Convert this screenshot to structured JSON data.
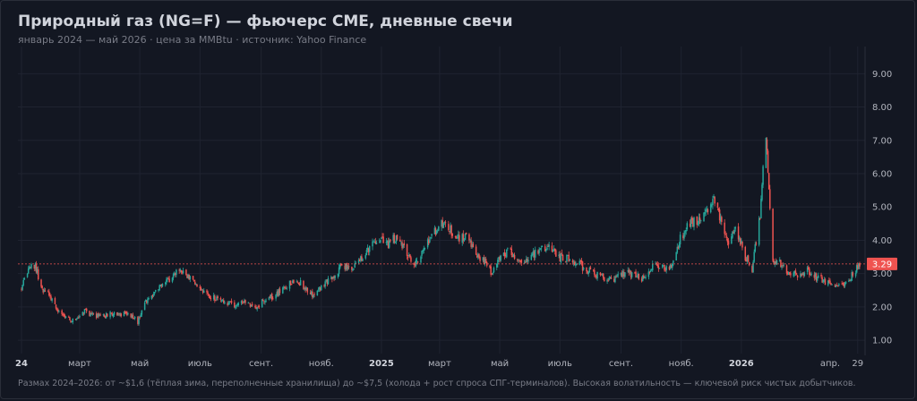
{
  "header": {
    "title": "Природный газ (NG=F) — фьючерс CME, дневные свечи",
    "subtitle": "январь 2024 — май 2026 · цена за MMBtu · источник: Yahoo Finance"
  },
  "footnote": "Размах 2024–2026: от ~$1,6 (тёплая зима, переполненные хранилища) до ~$7,5 (холода + рост спроса СПГ-терминалов). Высокая волатильность — ключевой риск чистых добытчиков.",
  "colors": {
    "background": "#131722",
    "grid": "#1f2330",
    "up": "#26a69a",
    "down": "#ef5350",
    "last_price": "#ef5350"
  },
  "chart_data": {
    "type": "candlestick",
    "title": "Природный газ (NG=F) — фьючерс CME, дневные свечи",
    "xlabel": "",
    "ylabel": "",
    "ylim": [
      0.6,
      9.6
    ],
    "y_ticks": [
      "1.00",
      "2.00",
      "3.00",
      "4.00",
      "5.00",
      "6.00",
      "7.00",
      "8.00",
      "9.00"
    ],
    "x_range": [
      "2024-01-02",
      "2026-05-01"
    ],
    "x_ticks": [
      {
        "date": "2024-01-01",
        "label": "24",
        "bold": true
      },
      {
        "date": "2024-03-01",
        "label": "март",
        "bold": false
      },
      {
        "date": "2024-05-01",
        "label": "май",
        "bold": false
      },
      {
        "date": "2024-07-01",
        "label": "июль",
        "bold": false
      },
      {
        "date": "2024-09-01",
        "label": "сент.",
        "bold": false
      },
      {
        "date": "2024-11-01",
        "label": "нояб.",
        "bold": false
      },
      {
        "date": "2025-01-01",
        "label": "2025",
        "bold": true
      },
      {
        "date": "2025-03-01",
        "label": "март",
        "bold": false
      },
      {
        "date": "2025-05-01",
        "label": "май",
        "bold": false
      },
      {
        "date": "2025-07-01",
        "label": "июль",
        "bold": false
      },
      {
        "date": "2025-09-01",
        "label": "сент.",
        "bold": false
      },
      {
        "date": "2025-11-01",
        "label": "нояб.",
        "bold": false
      },
      {
        "date": "2026-01-01",
        "label": "2026",
        "bold": true
      },
      {
        "date": "2026-04-01",
        "label": "апр.",
        "bold": false
      },
      {
        "date": "2026-04-29",
        "label": "29",
        "bold": false
      }
    ],
    "last_price": {
      "value": 3.29,
      "label": "3.29"
    },
    "price_path": [
      [
        "2024-01-02",
        2.55
      ],
      [
        "2024-01-10",
        3.2
      ],
      [
        "2024-01-16",
        3.25
      ],
      [
        "2024-01-22",
        2.55
      ],
      [
        "2024-01-29",
        2.5
      ],
      [
        "2024-02-05",
        2.0
      ],
      [
        "2024-02-12",
        1.75
      ],
      [
        "2024-02-20",
        1.6
      ],
      [
        "2024-02-28",
        1.65
      ],
      [
        "2024-03-06",
        1.9
      ],
      [
        "2024-03-14",
        1.75
      ],
      [
        "2024-03-22",
        1.7
      ],
      [
        "2024-04-01",
        1.8
      ],
      [
        "2024-04-10",
        1.8
      ],
      [
        "2024-04-22",
        1.75
      ],
      [
        "2024-04-29",
        1.55
      ],
      [
        "2024-05-06",
        2.1
      ],
      [
        "2024-05-15",
        2.4
      ],
      [
        "2024-05-24",
        2.65
      ],
      [
        "2024-06-03",
        2.9
      ],
      [
        "2024-06-11",
        3.1
      ],
      [
        "2024-06-20",
        2.85
      ],
      [
        "2024-07-01",
        2.6
      ],
      [
        "2024-07-12",
        2.3
      ],
      [
        "2024-07-24",
        2.15
      ],
      [
        "2024-08-05",
        2.05
      ],
      [
        "2024-08-15",
        2.15
      ],
      [
        "2024-08-26",
        1.95
      ],
      [
        "2024-09-04",
        2.2
      ],
      [
        "2024-09-16",
        2.35
      ],
      [
        "2024-09-26",
        2.6
      ],
      [
        "2024-10-07",
        2.85
      ],
      [
        "2024-10-16",
        2.55
      ],
      [
        "2024-10-24",
        2.35
      ],
      [
        "2024-11-04",
        2.7
      ],
      [
        "2024-11-14",
        2.95
      ],
      [
        "2024-11-22",
        3.25
      ],
      [
        "2024-12-03",
        3.15
      ],
      [
        "2024-12-12",
        3.5
      ],
      [
        "2024-12-20",
        3.75
      ],
      [
        "2024-12-30",
        4.05
      ],
      [
        "2025-01-08",
        3.9
      ],
      [
        "2025-01-16",
        4.1
      ],
      [
        "2025-01-24",
        3.8
      ],
      [
        "2025-02-03",
        3.3
      ],
      [
        "2025-02-12",
        3.6
      ],
      [
        "2025-02-21",
        4.2
      ],
      [
        "2025-03-03",
        4.5
      ],
      [
        "2025-03-11",
        4.35
      ],
      [
        "2025-03-20",
        4.05
      ],
      [
        "2025-03-28",
        4.1
      ],
      [
        "2025-04-07",
        3.55
      ],
      [
        "2025-04-15",
        3.4
      ],
      [
        "2025-04-23",
        3.0
      ],
      [
        "2025-05-02",
        3.55
      ],
      [
        "2025-05-12",
        3.7
      ],
      [
        "2025-05-20",
        3.3
      ],
      [
        "2025-05-30",
        3.5
      ],
      [
        "2025-06-09",
        3.65
      ],
      [
        "2025-06-20",
        3.8
      ],
      [
        "2025-06-30",
        3.5
      ],
      [
        "2025-07-08",
        3.45
      ],
      [
        "2025-07-18",
        3.35
      ],
      [
        "2025-07-28",
        3.1
      ],
      [
        "2025-08-06",
        3.0
      ],
      [
        "2025-08-18",
        2.8
      ],
      [
        "2025-08-28",
        2.85
      ],
      [
        "2025-09-08",
        3.05
      ],
      [
        "2025-09-18",
        2.9
      ],
      [
        "2025-09-26",
        2.8
      ],
      [
        "2025-10-06",
        3.35
      ],
      [
        "2025-10-15",
        3.1
      ],
      [
        "2025-10-22",
        3.25
      ],
      [
        "2025-10-31",
        4.05
      ],
      [
        "2025-11-10",
        4.5
      ],
      [
        "2025-11-20",
        4.65
      ],
      [
        "2025-11-28",
        4.8
      ],
      [
        "2025-12-04",
        5.2
      ],
      [
        "2025-12-11",
        4.6
      ],
      [
        "2025-12-18",
        3.9
      ],
      [
        "2025-12-26",
        4.4
      ],
      [
        "2026-01-05",
        3.5
      ],
      [
        "2026-01-12",
        3.15
      ],
      [
        "2026-01-20",
        4.8
      ],
      [
        "2026-01-26",
        7.3
      ],
      [
        "2026-02-02",
        3.4
      ],
      [
        "2026-02-09",
        3.3
      ],
      [
        "2026-02-18",
        3.05
      ],
      [
        "2026-02-27",
        2.95
      ],
      [
        "2026-03-09",
        3.1
      ],
      [
        "2026-03-18",
        2.9
      ],
      [
        "2026-03-27",
        2.75
      ],
      [
        "2026-04-06",
        2.65
      ],
      [
        "2026-04-14",
        2.7
      ],
      [
        "2026-04-21",
        2.85
      ],
      [
        "2026-05-01",
        3.29
      ]
    ]
  }
}
